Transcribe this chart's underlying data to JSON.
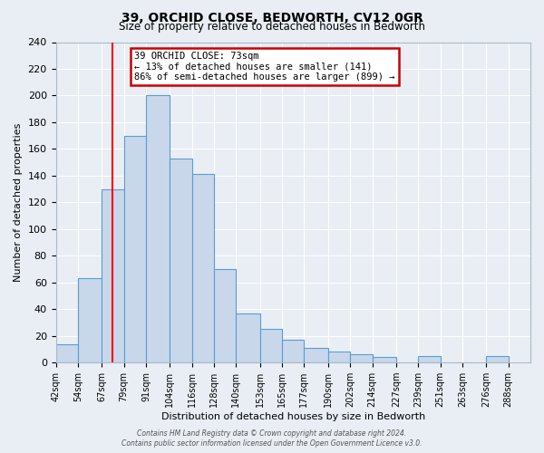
{
  "title": "39, ORCHID CLOSE, BEDWORTH, CV12 0GR",
  "subtitle": "Size of property relative to detached houses in Bedworth",
  "xlabel": "Distribution of detached houses by size in Bedworth",
  "ylabel": "Number of detached properties",
  "bar_left_edges": [
    42,
    54,
    67,
    79,
    91,
    104,
    116,
    128,
    140,
    153,
    165,
    177,
    190,
    202,
    214,
    227,
    239,
    251,
    263,
    276
  ],
  "bar_heights": [
    14,
    63,
    130,
    170,
    200,
    153,
    141,
    70,
    37,
    25,
    17,
    11,
    8,
    6,
    4,
    0,
    5,
    0,
    0,
    5
  ],
  "bar_widths": [
    12,
    13,
    12,
    12,
    13,
    12,
    12,
    12,
    13,
    12,
    12,
    13,
    12,
    12,
    13,
    12,
    12,
    12,
    13,
    12
  ],
  "tick_labels": [
    "42sqm",
    "54sqm",
    "67sqm",
    "79sqm",
    "91sqm",
    "104sqm",
    "116sqm",
    "128sqm",
    "140sqm",
    "153sqm",
    "165sqm",
    "177sqm",
    "190sqm",
    "202sqm",
    "214sqm",
    "227sqm",
    "239sqm",
    "251sqm",
    "263sqm",
    "276sqm",
    "288sqm"
  ],
  "tick_positions": [
    42,
    54,
    67,
    79,
    91,
    104,
    116,
    128,
    140,
    153,
    165,
    177,
    190,
    202,
    214,
    227,
    239,
    251,
    263,
    276,
    288
  ],
  "bar_fill_color": "#c8d8ea",
  "bar_edge_color": "#5b9bd5",
  "background_color": "#e8eef4",
  "red_line_x": 73,
  "annotation_title": "39 ORCHID CLOSE: 73sqm",
  "annotation_line1": "← 13% of detached houses are smaller (141)",
  "annotation_line2": "86% of semi-detached houses are larger (899) →",
  "annotation_box_color": "#ffffff",
  "annotation_box_edge_color": "#cc0000",
  "ylim": [
    0,
    240
  ],
  "yticks": [
    0,
    20,
    40,
    60,
    80,
    100,
    120,
    140,
    160,
    180,
    200,
    220,
    240
  ],
  "xlim": [
    42,
    300
  ],
  "footer_line1": "Contains HM Land Registry data © Crown copyright and database right 2024.",
  "footer_line2": "Contains public sector information licensed under the Open Government Licence v3.0."
}
